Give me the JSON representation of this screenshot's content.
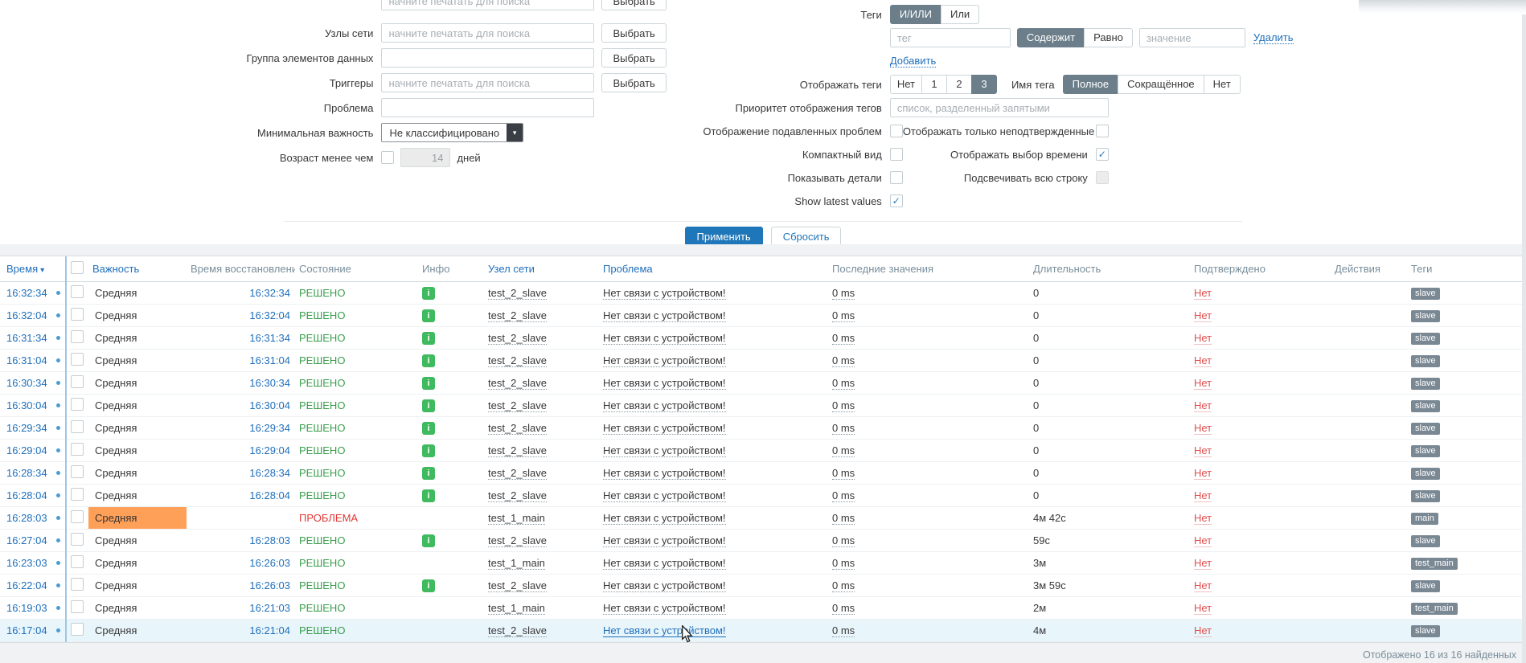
{
  "filter": {
    "search_placeholder": "начните печатать для поиска",
    "select_button_label": "Выбрать",
    "labels": {
      "hosts": "Узлы сети",
      "item_group": "Группа элементов данных",
      "triggers": "Триггеры",
      "problem": "Проблема",
      "min_severity": "Минимальная важность",
      "age": "Возраст менее чем",
      "age_unit": "дней",
      "tags": "Теги",
      "show_tags": "Отображать теги",
      "tag_name": "Имя тега",
      "tag_priority": "Приоритет отображения тегов",
      "show_suppressed": "Отображение подавленных проблем",
      "unacknowledged_only": "Отображать только неподтвержденные",
      "compact_view": "Компактный вид",
      "show_timeline": "Отображать выбор времени",
      "show_details": "Показывать детали",
      "highlight_row": "Подсвечивать всю строку",
      "show_latest_values": "Show latest values"
    },
    "values": {
      "min_severity": "Не классифицировано",
      "age": "14"
    },
    "placeholders": {
      "tag": "тег",
      "tag_value": "значение",
      "tag_priority": "список, разделенный запятыми"
    },
    "tag_logic_options": [
      "И/ИЛИ",
      "Или"
    ],
    "tag_operator_options": [
      "Содержит",
      "Равно"
    ],
    "show_tags_options": [
      "Нет",
      "1",
      "2",
      "3"
    ],
    "tag_name_options": [
      "Полное",
      "Сокращённое",
      "Нет"
    ],
    "links": {
      "remove": "Удалить",
      "add": "Добавить"
    },
    "buttons": {
      "apply": "Применить",
      "reset": "Сбросить"
    }
  },
  "icons": {
    "info_glyph": "i",
    "select_arrow": "▼"
  },
  "table": {
    "headers": {
      "time": "Время",
      "severity": "Важность",
      "recovery": "Время восстановления",
      "state": "Состояние",
      "info": "Инфо",
      "host": "Узел сети",
      "problem": "Проблема",
      "latest": "Последние значения",
      "duration": "Длительность",
      "ack": "Подтверждено",
      "actions": "Действия",
      "tags": "Теги"
    },
    "rows": [
      {
        "time": "16:32:34",
        "severity": "Средняя",
        "severity_highlighted": false,
        "recovery": "16:32:34",
        "state": "РЕШЕНО",
        "state_type": "resolved",
        "info": true,
        "host": "test_2_slave",
        "problem": "Нет связи с устройством!",
        "latest": "0 ms",
        "duration": "0",
        "ack": "Нет",
        "tags": [
          "slave"
        ],
        "highlighted": false
      },
      {
        "time": "16:32:04",
        "severity": "Средняя",
        "severity_highlighted": false,
        "recovery": "16:32:04",
        "state": "РЕШЕНО",
        "state_type": "resolved",
        "info": true,
        "host": "test_2_slave",
        "problem": "Нет связи с устройством!",
        "latest": "0 ms",
        "duration": "0",
        "ack": "Нет",
        "tags": [
          "slave"
        ],
        "highlighted": false
      },
      {
        "time": "16:31:34",
        "severity": "Средняя",
        "severity_highlighted": false,
        "recovery": "16:31:34",
        "state": "РЕШЕНО",
        "state_type": "resolved",
        "info": true,
        "host": "test_2_slave",
        "problem": "Нет связи с устройством!",
        "latest": "0 ms",
        "duration": "0",
        "ack": "Нет",
        "tags": [
          "slave"
        ],
        "highlighted": false
      },
      {
        "time": "16:31:04",
        "severity": "Средняя",
        "severity_highlighted": false,
        "recovery": "16:31:04",
        "state": "РЕШЕНО",
        "state_type": "resolved",
        "info": true,
        "host": "test_2_slave",
        "problem": "Нет связи с устройством!",
        "latest": "0 ms",
        "duration": "0",
        "ack": "Нет",
        "tags": [
          "slave"
        ],
        "highlighted": false
      },
      {
        "time": "16:30:34",
        "severity": "Средняя",
        "severity_highlighted": false,
        "recovery": "16:30:34",
        "state": "РЕШЕНО",
        "state_type": "resolved",
        "info": true,
        "host": "test_2_slave",
        "problem": "Нет связи с устройством!",
        "latest": "0 ms",
        "duration": "0",
        "ack": "Нет",
        "tags": [
          "slave"
        ],
        "highlighted": false
      },
      {
        "time": "16:30:04",
        "severity": "Средняя",
        "severity_highlighted": false,
        "recovery": "16:30:04",
        "state": "РЕШЕНО",
        "state_type": "resolved",
        "info": true,
        "host": "test_2_slave",
        "problem": "Нет связи с устройством!",
        "latest": "0 ms",
        "duration": "0",
        "ack": "Нет",
        "tags": [
          "slave"
        ],
        "highlighted": false
      },
      {
        "time": "16:29:34",
        "severity": "Средняя",
        "severity_highlighted": false,
        "recovery": "16:29:34",
        "state": "РЕШЕНО",
        "state_type": "resolved",
        "info": true,
        "host": "test_2_slave",
        "problem": "Нет связи с устройством!",
        "latest": "0 ms",
        "duration": "0",
        "ack": "Нет",
        "tags": [
          "slave"
        ],
        "highlighted": false
      },
      {
        "time": "16:29:04",
        "severity": "Средняя",
        "severity_highlighted": false,
        "recovery": "16:29:04",
        "state": "РЕШЕНО",
        "state_type": "resolved",
        "info": true,
        "host": "test_2_slave",
        "problem": "Нет связи с устройством!",
        "latest": "0 ms",
        "duration": "0",
        "ack": "Нет",
        "tags": [
          "slave"
        ],
        "highlighted": false
      },
      {
        "time": "16:28:34",
        "severity": "Средняя",
        "severity_highlighted": false,
        "recovery": "16:28:34",
        "state": "РЕШЕНО",
        "state_type": "resolved",
        "info": true,
        "host": "test_2_slave",
        "problem": "Нет связи с устройством!",
        "latest": "0 ms",
        "duration": "0",
        "ack": "Нет",
        "tags": [
          "slave"
        ],
        "highlighted": false
      },
      {
        "time": "16:28:04",
        "severity": "Средняя",
        "severity_highlighted": false,
        "recovery": "16:28:04",
        "state": "РЕШЕНО",
        "state_type": "resolved",
        "info": true,
        "host": "test_2_slave",
        "problem": "Нет связи с устройством!",
        "latest": "0 ms",
        "duration": "0",
        "ack": "Нет",
        "tags": [
          "slave"
        ],
        "highlighted": false
      },
      {
        "time": "16:28:03",
        "severity": "Средняя",
        "severity_highlighted": true,
        "recovery": "",
        "state": "ПРОБЛЕМА",
        "state_type": "problem",
        "info": false,
        "host": "test_1_main",
        "problem": "Нет связи с устройством!",
        "latest": "0 ms",
        "duration": "4м 42с",
        "ack": "Нет",
        "tags": [
          "main"
        ],
        "highlighted": false
      },
      {
        "time": "16:27:04",
        "severity": "Средняя",
        "severity_highlighted": false,
        "recovery": "16:28:03",
        "state": "РЕШЕНО",
        "state_type": "resolved",
        "info": true,
        "host": "test_2_slave",
        "problem": "Нет связи с устройством!",
        "latest": "0 ms",
        "duration": "59с",
        "ack": "Нет",
        "tags": [
          "slave"
        ],
        "highlighted": false
      },
      {
        "time": "16:23:03",
        "severity": "Средняя",
        "severity_highlighted": false,
        "recovery": "16:26:03",
        "state": "РЕШЕНО",
        "state_type": "resolved",
        "info": false,
        "host": "test_1_main",
        "problem": "Нет связи с устройством!",
        "latest": "0 ms",
        "duration": "3м",
        "ack": "Нет",
        "tags": [
          "test_main"
        ],
        "highlighted": false
      },
      {
        "time": "16:22:04",
        "severity": "Средняя",
        "severity_highlighted": false,
        "recovery": "16:26:03",
        "state": "РЕШЕНО",
        "state_type": "resolved",
        "info": true,
        "host": "test_2_slave",
        "problem": "Нет связи с устройством!",
        "latest": "0 ms",
        "duration": "3м 59с",
        "ack": "Нет",
        "tags": [
          "slave"
        ],
        "highlighted": false
      },
      {
        "time": "16:19:03",
        "severity": "Средняя",
        "severity_highlighted": false,
        "recovery": "16:21:03",
        "state": "РЕШЕНО",
        "state_type": "resolved",
        "info": false,
        "host": "test_1_main",
        "problem": "Нет связи с устройством!",
        "latest": "0 ms",
        "duration": "2м",
        "ack": "Нет",
        "tags": [
          "test_main"
        ],
        "highlighted": false
      },
      {
        "time": "16:17:04",
        "severity": "Средняя",
        "severity_highlighted": false,
        "recovery": "16:21:04",
        "state": "РЕШЕНО",
        "state_type": "resolved",
        "info": false,
        "host": "test_2_slave",
        "problem": "Нет связи с устройством!",
        "latest": "0 ms",
        "duration": "4м",
        "ack": "Нет",
        "tags": [
          "slave"
        ],
        "highlighted": true
      }
    ]
  },
  "footer": {
    "status": "Отображено 16 из 16 найденных"
  },
  "colors": {
    "link_blue": "#1f6fbb",
    "resolved_green": "#3a9e4d",
    "problem_red": "#e33734",
    "severity_average_bg": "#ffa059",
    "tag_chip_bg": "#7a8894",
    "segment_active_bg": "#6b7e8a"
  }
}
